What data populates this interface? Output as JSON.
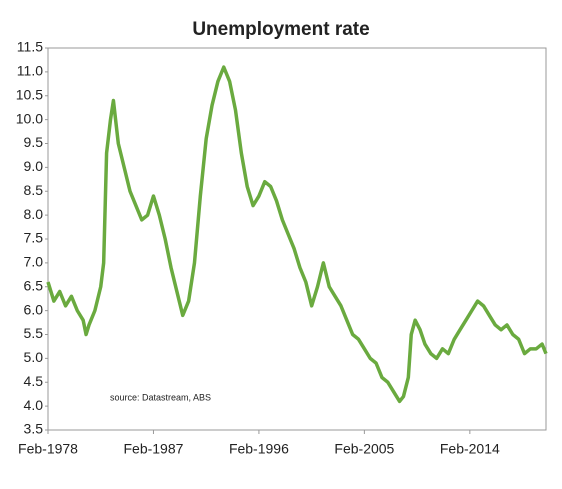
{
  "chart_data": {
    "type": "line",
    "title": "Unemployment rate",
    "annotation": "source:  Datastream, ABS",
    "x": [
      "1978-02",
      "1978-08",
      "1979-02",
      "1979-08",
      "1980-02",
      "1980-08",
      "1981-02",
      "1981-05",
      "1981-08",
      "1982-02",
      "1982-08",
      "1982-11",
      "1983-02",
      "1983-06",
      "1983-09",
      "1984-02",
      "1984-08",
      "1985-02",
      "1985-08",
      "1986-02",
      "1986-08",
      "1987-02",
      "1987-08",
      "1988-02",
      "1988-08",
      "1989-02",
      "1989-08",
      "1990-02",
      "1990-08",
      "1991-02",
      "1991-08",
      "1992-02",
      "1992-08",
      "1993-02",
      "1993-08",
      "1994-02",
      "1994-08",
      "1995-02",
      "1995-08",
      "1996-02",
      "1996-08",
      "1997-02",
      "1997-08",
      "1998-02",
      "1998-08",
      "1999-02",
      "1999-08",
      "2000-02",
      "2000-08",
      "2001-02",
      "2001-08",
      "2002-02",
      "2002-08",
      "2003-02",
      "2003-08",
      "2004-02",
      "2004-08",
      "2005-02",
      "2005-08",
      "2006-02",
      "2006-08",
      "2007-02",
      "2007-08",
      "2008-02",
      "2008-06",
      "2008-11",
      "2009-02",
      "2009-06",
      "2009-11",
      "2010-04",
      "2010-10",
      "2011-04",
      "2011-10",
      "2012-04",
      "2012-10",
      "2013-04",
      "2013-10",
      "2014-04",
      "2014-10",
      "2015-04",
      "2015-10",
      "2016-04",
      "2016-10",
      "2017-04",
      "2017-10",
      "2018-04",
      "2018-10",
      "2019-04",
      "2019-10",
      "2020-04",
      "2020-08"
    ],
    "series": [
      {
        "color": "#6aaa3f",
        "values": [
          6.6,
          6.2,
          6.4,
          6.1,
          6.3,
          6.0,
          5.8,
          5.5,
          5.7,
          6.0,
          6.5,
          7.0,
          9.3,
          10.0,
          10.4,
          9.5,
          9.0,
          8.5,
          8.2,
          7.9,
          8.0,
          8.4,
          8.0,
          7.5,
          6.9,
          6.4,
          5.9,
          6.2,
          7.0,
          8.4,
          9.6,
          10.3,
          10.8,
          11.1,
          10.8,
          10.2,
          9.3,
          8.6,
          8.2,
          8.4,
          8.7,
          8.6,
          8.3,
          7.9,
          7.6,
          7.3,
          6.9,
          6.6,
          6.1,
          6.5,
          7.0,
          6.5,
          6.3,
          6.1,
          5.8,
          5.5,
          5.4,
          5.2,
          5.0,
          4.9,
          4.6,
          4.5,
          4.3,
          4.1,
          4.2,
          4.6,
          5.5,
          5.8,
          5.6,
          5.3,
          5.1,
          5.0,
          5.2,
          5.1,
          5.4,
          5.6,
          5.8,
          6.0,
          6.2,
          6.1,
          5.9,
          5.7,
          5.6,
          5.7,
          5.5,
          5.4,
          5.1,
          5.2,
          5.2,
          5.3,
          5.1
        ]
      }
    ],
    "xlim": [
      "1978-02",
      "2020-08"
    ],
    "xticks": [
      {
        "value": "1978-02",
        "label": "Feb-1978"
      },
      {
        "value": "1987-02",
        "label": "Feb-1987"
      },
      {
        "value": "1996-02",
        "label": "Feb-1996"
      },
      {
        "value": "2005-02",
        "label": "Feb-2005"
      },
      {
        "value": "2014-02",
        "label": "Feb-2014"
      }
    ],
    "ylim": [
      3.5,
      11.5
    ],
    "yticks": [
      3.5,
      {
        "value": 4,
        "label": "4.0"
      },
      4.5,
      {
        "value": 5,
        "label": "5.0"
      },
      5.5,
      {
        "value": 6,
        "label": "6.0"
      },
      6.5,
      {
        "value": 7,
        "label": "7.0"
      },
      7.5,
      {
        "value": 8,
        "label": "8.0"
      },
      8.5,
      {
        "value": 9,
        "label": "9.0"
      },
      9.5,
      {
        "value": 10,
        "label": "10.0"
      },
      10.5,
      {
        "value": 11,
        "label": "11.0"
      },
      11.5
    ],
    "grid": false
  }
}
